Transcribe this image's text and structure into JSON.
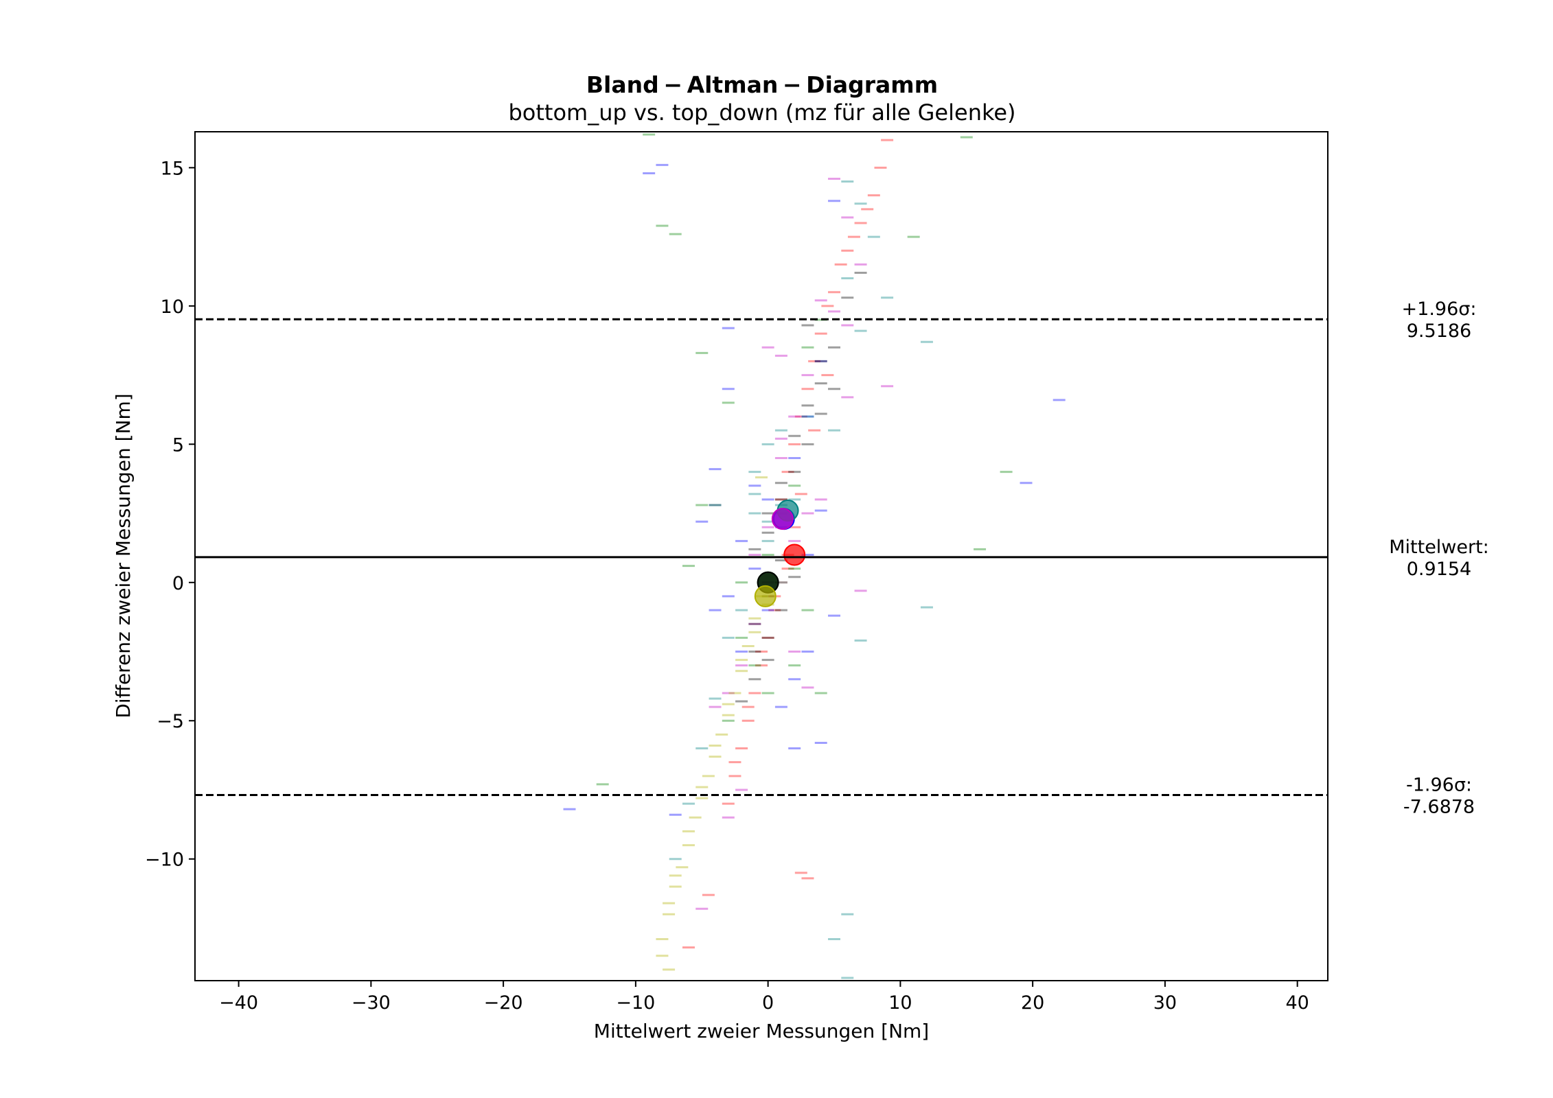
{
  "chart_data": {
    "type": "scatter",
    "title": "Bland − Altman − Diagramm",
    "subtitle": "bottom_up vs. top_down (mz für alle Gelenke)",
    "xlabel": "Mittelwert zweier Messungen [Nm]",
    "ylabel": "Differenz zweier Messungen [Nm]",
    "xlim": [
      -43.3,
      42.3
    ],
    "ylim": [
      -14.4,
      16.3
    ],
    "x_ticks": [
      -40,
      -30,
      -20,
      -10,
      0,
      10,
      20,
      30,
      40
    ],
    "x_tick_labels": [
      "−40",
      "−30",
      "−20",
      "−10",
      "0",
      "10",
      "20",
      "30",
      "40"
    ],
    "y_ticks": [
      -10,
      -5,
      0,
      5,
      10,
      15
    ],
    "y_tick_labels": [
      "−10",
      "−5",
      "0",
      "5",
      "10",
      "15"
    ],
    "grid": false,
    "lines": [
      {
        "name": "mean",
        "y": 0.9154,
        "style": "solid",
        "label_line1": "Mittelwert:",
        "label_line2": "0.9154"
      },
      {
        "name": "upper-limit",
        "y": 9.5186,
        "style": "dashed",
        "label_line1": "+1.96σ:",
        "label_line2": "9.5186"
      },
      {
        "name": "lower-limit",
        "y": -7.6878,
        "style": "dashed",
        "label_line1": "-1.96σ:",
        "label_line2": "-7.6878"
      }
    ],
    "series": [
      {
        "color": "#ff0000",
        "center": [
          2.0,
          1.0
        ],
        "points": [
          [
            1,
            3
          ],
          [
            1.5,
            4
          ],
          [
            2,
            5
          ],
          [
            2.5,
            6
          ],
          [
            3,
            7
          ],
          [
            3.5,
            8
          ],
          [
            4,
            9
          ],
          [
            4.5,
            10
          ],
          [
            5,
            10.5
          ],
          [
            5.5,
            11.5
          ],
          [
            6,
            12
          ],
          [
            6.5,
            12.5
          ],
          [
            7,
            13
          ],
          [
            7.5,
            13.5
          ],
          [
            8,
            14
          ],
          [
            8.5,
            15
          ],
          [
            9,
            16
          ],
          [
            2,
            2
          ],
          [
            1.5,
            1
          ],
          [
            1,
            0
          ],
          [
            0.5,
            -1
          ],
          [
            0,
            -2
          ],
          [
            -0.5,
            -3
          ],
          [
            -1,
            -4
          ],
          [
            -1.5,
            -5
          ],
          [
            -2,
            -6
          ],
          [
            -2.5,
            -7
          ],
          [
            -3,
            -8
          ],
          [
            -4.5,
            -11.3
          ],
          [
            -6,
            -13.2
          ],
          [
            2.5,
            -10.5
          ],
          [
            3,
            -10.7
          ],
          [
            1.5,
            0.5
          ],
          [
            2.5,
            3.2
          ],
          [
            3.5,
            5.5
          ],
          [
            4.5,
            7.5
          ],
          [
            0.5,
            -0.5
          ],
          [
            -0.5,
            -2.5
          ],
          [
            -1.5,
            -4.5
          ],
          [
            -2.5,
            -6.5
          ]
        ]
      },
      {
        "color": "#0000ff",
        "center": [
          1.2,
          2.3
        ],
        "points": [
          [
            -9,
            14.8
          ],
          [
            -8,
            15.1
          ],
          [
            -3,
            9.2
          ],
          [
            -3,
            7.0
          ],
          [
            -4,
            4.1
          ],
          [
            -5,
            2.2
          ],
          [
            -4,
            2.8
          ],
          [
            -1,
            3.5
          ],
          [
            0,
            3.0
          ],
          [
            2,
            4.5
          ],
          [
            4,
            2.6
          ],
          [
            22,
            6.6
          ],
          [
            19.5,
            3.6
          ],
          [
            -15,
            -8.2
          ],
          [
            -7,
            -8.4
          ],
          [
            3,
            -2.5
          ],
          [
            5,
            -1.2
          ],
          [
            4,
            -5.8
          ],
          [
            2,
            -6.0
          ],
          [
            1,
            -4.5
          ],
          [
            -3,
            -0.5
          ],
          [
            -4,
            -1.0
          ],
          [
            -1,
            0.5
          ],
          [
            0,
            -1.0
          ],
          [
            -2,
            1.5
          ],
          [
            3,
            1.0
          ],
          [
            1,
            2.0
          ],
          [
            2,
            -3.5
          ],
          [
            3,
            6.0
          ],
          [
            4,
            8.0
          ],
          [
            5,
            13.8
          ],
          [
            -2,
            -2.5
          ]
        ]
      },
      {
        "color": "#008000",
        "center": [
          0.0,
          0.0
        ],
        "points": [
          [
            -9,
            16.2
          ],
          [
            -8,
            12.9
          ],
          [
            -7,
            12.6
          ],
          [
            -5,
            8.3
          ],
          [
            -3,
            6.5
          ],
          [
            -5,
            2.8
          ],
          [
            -4,
            2.8
          ],
          [
            -6,
            0.6
          ],
          [
            -12.5,
            -7.3
          ],
          [
            15,
            16.1
          ],
          [
            11,
            12.5
          ],
          [
            18,
            4.0
          ],
          [
            16,
            1.2
          ],
          [
            3,
            -1.0
          ],
          [
            2,
            -3.0
          ],
          [
            4,
            -4.0
          ],
          [
            -2,
            -2.0
          ],
          [
            -1,
            -3.0
          ],
          [
            0,
            -4.0
          ],
          [
            1,
            2.5
          ],
          [
            2,
            3.5
          ],
          [
            3,
            8.5
          ],
          [
            4,
            9.5
          ],
          [
            -3,
            -5.0
          ],
          [
            -2,
            0.0
          ],
          [
            0,
            1.0
          ],
          [
            2,
            0.5
          ]
        ]
      },
      {
        "color": "#008080",
        "center": [
          1.5,
          2.6
        ],
        "points": [
          [
            6,
            14.5
          ],
          [
            8,
            12.5
          ],
          [
            9,
            10.3
          ],
          [
            12,
            8.7
          ],
          [
            7,
            9.1
          ],
          [
            5,
            5.5
          ],
          [
            3,
            6.0
          ],
          [
            1,
            5.5
          ],
          [
            0,
            5.0
          ],
          [
            -1,
            4.0
          ],
          [
            2,
            3.0
          ],
          [
            0,
            1.5
          ],
          [
            -1,
            2.5
          ],
          [
            1,
            0.0
          ],
          [
            12,
            -0.9
          ],
          [
            7,
            -2.1
          ],
          [
            6,
            -12.0
          ],
          [
            5,
            -12.9
          ],
          [
            6,
            -14.3
          ],
          [
            -2,
            -1.0
          ],
          [
            -3,
            -2.0
          ],
          [
            -4,
            -4.2
          ],
          [
            -5,
            -6.0
          ],
          [
            -6,
            -8.0
          ],
          [
            -7,
            -10.0
          ],
          [
            7,
            13.7
          ],
          [
            6,
            11.0
          ],
          [
            -1,
            3.2
          ],
          [
            0,
            2.2
          ],
          [
            1,
            2.8
          ]
        ]
      },
      {
        "color": "#c000c0",
        "center": [
          1.1,
          2.3
        ],
        "points": [
          [
            5,
            14.6
          ],
          [
            6,
            13.2
          ],
          [
            7,
            11.5
          ],
          [
            4,
            10.2
          ],
          [
            5,
            9.8
          ],
          [
            6,
            9.3
          ],
          [
            9,
            7.1
          ],
          [
            6,
            6.7
          ],
          [
            3,
            7.5
          ],
          [
            1,
            8.2
          ],
          [
            0,
            8.5
          ],
          [
            2,
            6.0
          ],
          [
            1,
            4.5
          ],
          [
            0,
            2.0
          ],
          [
            -1,
            1.0
          ],
          [
            0,
            0.0
          ],
          [
            -1,
            -1.5
          ],
          [
            -2,
            -3.0
          ],
          [
            -3,
            -4.0
          ],
          [
            -4,
            -4.5
          ],
          [
            7,
            -0.3
          ],
          [
            3,
            -3.8
          ],
          [
            2,
            -2.5
          ],
          [
            -2,
            -7.5
          ],
          [
            -3,
            -8.5
          ],
          [
            -5,
            -11.8
          ],
          [
            3,
            2.5
          ],
          [
            2,
            1.5
          ],
          [
            1,
            5.2
          ],
          [
            4,
            3.0
          ]
        ]
      },
      {
        "color": "#000000",
        "center": [
          0.0,
          0.0
        ],
        "points": [
          [
            3,
            9.3
          ],
          [
            4,
            8.0
          ],
          [
            5,
            7.0
          ],
          [
            4,
            6.1
          ],
          [
            3,
            5.0
          ],
          [
            2,
            4.0
          ],
          [
            1,
            3.0
          ],
          [
            0,
            1.8
          ],
          [
            1,
            0.8
          ],
          [
            0,
            -0.5
          ],
          [
            -1,
            -1.5
          ],
          [
            0,
            -2.8
          ],
          [
            -1,
            -3.5
          ],
          [
            -2,
            -4.3
          ],
          [
            6,
            10.3
          ],
          [
            7,
            11.2
          ],
          [
            5,
            8.5
          ],
          [
            4,
            7.2
          ],
          [
            3,
            6.4
          ],
          [
            2,
            5.3
          ],
          [
            1,
            3.6
          ],
          [
            0,
            2.5
          ],
          [
            -1,
            1.2
          ],
          [
            2,
            0.2
          ],
          [
            1,
            -1.0
          ],
          [
            0,
            -2.0
          ],
          [
            -1,
            -2.5
          ]
        ]
      },
      {
        "color": "#b0b000",
        "center": [
          -0.2,
          -0.5
        ],
        "points": [
          [
            -2,
            -3.2
          ],
          [
            -2.5,
            -4.0
          ],
          [
            -3,
            -4.8
          ],
          [
            -3.5,
            -5.5
          ],
          [
            -4,
            -6.3
          ],
          [
            -4.5,
            -7.0
          ],
          [
            -5,
            -7.8
          ],
          [
            -5.5,
            -8.5
          ],
          [
            -6,
            -9.5
          ],
          [
            -6.5,
            -10.3
          ],
          [
            -7,
            -11.0
          ],
          [
            -7.5,
            -12.0
          ],
          [
            -8,
            -12.9
          ],
          [
            -8,
            -13.5
          ],
          [
            -7.5,
            -14.0
          ],
          [
            -0.5,
            -0.5
          ],
          [
            -1,
            -1.3
          ],
          [
            -1.5,
            -2.3
          ],
          [
            -0.5,
            3.8
          ],
          [
            -1,
            -1.8
          ],
          [
            -2,
            -2.8
          ],
          [
            -3,
            -4.4
          ],
          [
            -4,
            -5.9
          ],
          [
            -5,
            -7.4
          ],
          [
            -6,
            -9.0
          ],
          [
            -7,
            -10.6
          ],
          [
            -7.5,
            -11.6
          ],
          [
            0,
            -0.8
          ]
        ]
      }
    ]
  }
}
